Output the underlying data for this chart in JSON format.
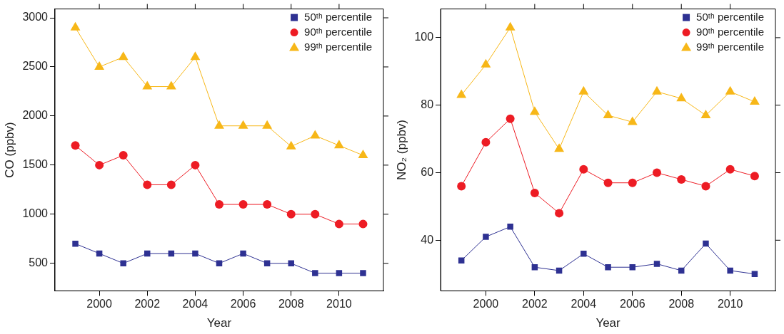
{
  "chart_data": [
    {
      "type": "line",
      "xlabel": "Year",
      "ylabel": "CO (ppbv)",
      "x": [
        1999,
        2000,
        2001,
        2002,
        2003,
        2004,
        2005,
        2006,
        2007,
        2008,
        2009,
        2010,
        2011
      ],
      "series": [
        {
          "name": "50ᵗʰ percentile",
          "color": "#2e3192",
          "marker": "square",
          "values": [
            700,
            600,
            500,
            600,
            600,
            600,
            500,
            600,
            500,
            500,
            400,
            400,
            400
          ]
        },
        {
          "name": "90ᵗʰ percentile",
          "color": "#ed1c24",
          "marker": "circle",
          "values": [
            1700,
            1500,
            1600,
            1300,
            1300,
            1500,
            1100,
            1100,
            1100,
            1000,
            1000,
            900,
            900
          ]
        },
        {
          "name": "99ᵗʰ percentile",
          "color": "#f7b718",
          "marker": "triangle",
          "values": [
            2900,
            2500,
            2600,
            2300,
            2300,
            2600,
            1900,
            1900,
            1900,
            1690,
            1800,
            1700,
            1600
          ]
        }
      ],
      "xlim": [
        1998.15,
        2011.85
      ],
      "xticks": [
        2000,
        2002,
        2004,
        2006,
        2008,
        2010
      ],
      "ylim": [
        220,
        3090
      ],
      "yticks": [
        500,
        1000,
        1500,
        2000,
        2500,
        3000
      ],
      "grid": false,
      "legend": "top right"
    },
    {
      "type": "line",
      "xlabel": "Year",
      "ylabel": "NO₂ (ppbv)",
      "x": [
        1999,
        2000,
        2001,
        2002,
        2003,
        2004,
        2005,
        2006,
        2007,
        2008,
        2009,
        2010,
        2011
      ],
      "series": [
        {
          "name": "50ᵗʰ percentile",
          "color": "#2e3192",
          "marker": "square",
          "values": [
            34,
            41,
            44,
            32,
            31,
            36,
            32,
            32,
            33,
            31,
            39,
            31,
            30
          ]
        },
        {
          "name": "90ᵗʰ percentile",
          "color": "#ed1c24",
          "marker": "circle",
          "values": [
            56,
            69,
            76,
            54,
            48,
            61,
            57,
            57,
            60,
            58,
            56,
            61,
            59
          ]
        },
        {
          "name": "99ᵗʰ percentile",
          "color": "#f7b718",
          "marker": "triangle",
          "values": [
            83,
            92,
            103,
            78,
            67,
            84,
            77,
            75,
            84,
            82,
            77,
            84,
            81
          ]
        }
      ],
      "xlim": [
        1998.15,
        2011.85
      ],
      "xticks": [
        2000,
        2002,
        2004,
        2006,
        2008,
        2010
      ],
      "ylim": [
        25,
        108.5
      ],
      "yticks": [
        40,
        60,
        80,
        100
      ],
      "grid": false,
      "legend": "top right"
    }
  ]
}
